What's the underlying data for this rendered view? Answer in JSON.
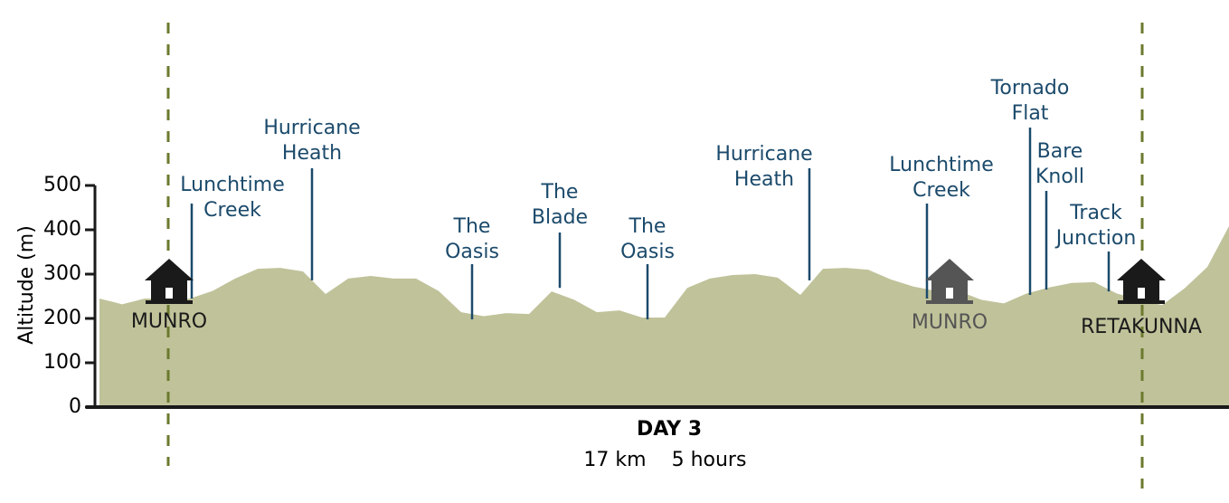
{
  "chart_data": {
    "type": "area",
    "title": "DAY 3",
    "subtitle": [
      "17 km",
      "5 hours"
    ],
    "y_label": "Altitude (m)",
    "ylim": [
      0,
      500
    ],
    "yticks": [
      0,
      100,
      200,
      300,
      400,
      500
    ],
    "color": "#c0c29a",
    "label_color": "#1b4a6b",
    "values": [
      245,
      232,
      245,
      245,
      245,
      262,
      290,
      312,
      314,
      306,
      255,
      290,
      296,
      290,
      290,
      262,
      214,
      205,
      212,
      210,
      261,
      242,
      214,
      218,
      202,
      202,
      269,
      290,
      298,
      300,
      292,
      253,
      312,
      314,
      310,
      288,
      272,
      262,
      262,
      242,
      234,
      256,
      270,
      280,
      282,
      256,
      242,
      230,
      268,
      316,
      412
    ],
    "landmarks": [
      {
        "label": [
          "Lunchtime",
          "Creek"
        ],
        "value": 245
      },
      {
        "label": [
          "Hurricane",
          "Heath"
        ],
        "value": 286
      },
      {
        "label": [
          "The",
          "Oasis"
        ],
        "value": 198
      },
      {
        "label": [
          "The",
          "Blade"
        ],
        "value": 269
      },
      {
        "label": [
          "The",
          "Oasis"
        ],
        "value": 198
      },
      {
        "label": [
          "Hurricane",
          "Heath"
        ],
        "value": 286
      },
      {
        "label": [
          "Lunchtime",
          "Creek"
        ],
        "value": 245
      },
      {
        "label": [
          "Tornado",
          "Flat"
        ],
        "value": 253
      },
      {
        "label": [
          "Bare",
          "Knoll"
        ],
        "value": 265
      },
      {
        "label": [
          "Track",
          "Junction"
        ],
        "value": 261
      }
    ],
    "huts": [
      {
        "label": "MUNRO",
        "color": "#1a1a1a"
      },
      {
        "label": "MUNRO",
        "color": "#555555"
      },
      {
        "label": "RETAKUNNA",
        "color": "#1a1a1a"
      }
    ]
  }
}
